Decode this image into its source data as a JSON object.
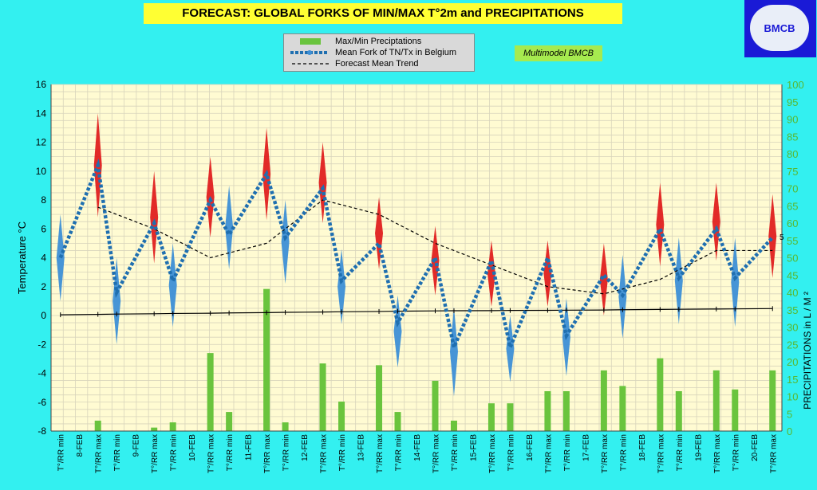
{
  "header": {
    "title": "FORECAST: GLOBAL FORKS OF  MIN/MAX T°2m and PRECIPITATIONS",
    "logo_text": "BMCB",
    "model_label": "Multimodel BMCB"
  },
  "legend": {
    "items": [
      {
        "label": "Max/Min Preciptations",
        "icon": "green-bar-swatch"
      },
      {
        "label": "Mean Fork of TN/Tx in Belgium",
        "icon": "blue-dotted-line-swatch"
      },
      {
        "label": "Forecast Mean Trend",
        "icon": "black-dashed-line-swatch"
      }
    ]
  },
  "chart_data": {
    "type": "line",
    "xlabel": "",
    "ylabel": "Temperature °C",
    "y2label": "PRECIPITATIONS in L / M ²",
    "ylim": [
      -8,
      16
    ],
    "y_ticks": [
      "-8",
      "-6",
      "-4",
      "-2",
      "0",
      "2",
      "4",
      "6",
      "8",
      "10",
      "12",
      "14",
      "16"
    ],
    "y2lim": [
      0,
      100
    ],
    "y2_ticks": [
      "0",
      "5",
      "10",
      "15",
      "20",
      "25",
      "30",
      "35",
      "40",
      "45",
      "50",
      "55",
      "60",
      "65",
      "70",
      "75",
      "80",
      "85",
      "90",
      "95",
      "100"
    ],
    "grid": true,
    "legend_position": "top-center",
    "colors": {
      "plot_bg": "#fffbd2",
      "grid": "#d8d4bb",
      "mean_fork": "#1f6fb0",
      "min_spike": "#3d8fd6",
      "max_spike": "#e0201f",
      "precip_bar": "#6ac43d",
      "trend": "#000000",
      "right_axis_text": "#59b830",
      "frame_bg": "#33f0f0",
      "title_bg": "#ffff33"
    },
    "categories": [
      "T°/RR min",
      "8-FEB",
      "T°/RR max",
      "T°/RR min",
      "9-FEB",
      "T°/RR max",
      "T°/RR min",
      "10-FEB",
      "T°/RR max",
      "T°/RR min",
      "11-FEB",
      "T°/RR max",
      "T°/RR min",
      "12-FEB",
      "T°/RR max",
      "T°/RR min",
      "13-FEB",
      "T°/RR max",
      "T°/RR min",
      "14-FEB",
      "T°/RR max",
      "T°/RR min",
      "15-FEB",
      "T°/RR max",
      "T°/RR min",
      "16-FEB",
      "T°/RR max",
      "T°/RR min",
      "17-FEB",
      "T°/RR max",
      "T°/RR min",
      "18-FEB",
      "T°/RR max",
      "T°/RR min",
      "19-FEB",
      "T°/RR max",
      "T°/RR min",
      "20-FEB",
      "T°/RR max"
    ],
    "series": [
      {
        "name": "Mean Fork of TN/Tx in Belgium",
        "values": [
          4.0,
          null,
          10.4,
          1.6,
          null,
          6.4,
          2.4,
          null,
          8.0,
          5.6,
          null,
          9.8,
          5.4,
          null,
          8.8,
          2.4,
          null,
          5.0,
          -0.5,
          null,
          4.0,
          -2.2,
          null,
          3.8,
          -2.2,
          null,
          4.0,
          -1.4,
          null,
          2.8,
          1.4,
          null,
          6.0,
          2.6,
          null,
          6.0,
          2.6,
          null,
          5.4
        ]
      },
      {
        "name": "Forecast Mean Trend",
        "values": [
          null,
          null,
          7.5,
          null,
          null,
          6.0,
          null,
          null,
          4.0,
          null,
          null,
          5.0,
          null,
          null,
          8.0,
          null,
          null,
          7.0,
          null,
          null,
          5.0,
          null,
          null,
          3.5,
          null,
          null,
          2.0,
          null,
          null,
          1.5,
          null,
          null,
          2.5,
          null,
          null,
          4.5,
          null,
          null,
          4.5
        ]
      },
      {
        "name": "Min spike",
        "values": [
          7.0,
          null,
          null,
          4.0,
          null,
          null,
          5.0,
          null,
          null,
          9.0,
          null,
          null,
          8.0,
          null,
          null,
          4.6,
          null,
          null,
          1.4,
          null,
          null,
          0.6,
          null,
          null,
          0.0,
          null,
          null,
          1.2,
          null,
          null,
          4.2,
          null,
          null,
          5.4,
          null,
          null,
          5.4,
          null,
          null
        ],
        "lows": [
          1.0,
          null,
          null,
          -2.0,
          null,
          null,
          -0.8,
          null,
          null,
          3.2,
          null,
          null,
          2.2,
          null,
          null,
          -0.6,
          null,
          null,
          -3.6,
          null,
          null,
          -5.6,
          null,
          null,
          -4.6,
          null,
          null,
          -4.2,
          null,
          null,
          -1.6,
          null,
          null,
          -0.6,
          null,
          null,
          -0.8,
          null,
          null
        ]
      },
      {
        "name": "Max spike",
        "values": [
          null,
          null,
          14.0,
          null,
          null,
          10.0,
          null,
          null,
          11.0,
          null,
          null,
          13.0,
          null,
          null,
          12.0,
          null,
          null,
          8.2,
          null,
          null,
          6.2,
          null,
          null,
          5.2,
          null,
          null,
          5.2,
          null,
          null,
          5.0,
          null,
          null,
          9.2,
          null,
          null,
          9.2,
          null,
          null,
          8.4
        ],
        "lows": [
          null,
          null,
          6.8,
          null,
          null,
          3.6,
          null,
          null,
          5.4,
          null,
          null,
          6.6,
          null,
          null,
          6.4,
          null,
          null,
          3.2,
          null,
          null,
          1.4,
          null,
          null,
          0.6,
          null,
          null,
          0.6,
          null,
          null,
          0.0,
          null,
          null,
          3.4,
          null,
          null,
          3.8,
          null,
          null,
          2.6
        ]
      },
      {
        "name": "Max/Min Preciptations",
        "axis": "right",
        "values": [
          0,
          null,
          3,
          0,
          null,
          1,
          2.5,
          null,
          22.5,
          5.5,
          null,
          41,
          2.5,
          null,
          19.5,
          8.5,
          null,
          19,
          5.5,
          null,
          14.5,
          3,
          null,
          8,
          8,
          null,
          11.5,
          11.5,
          null,
          17.5,
          13,
          null,
          21,
          11.5,
          null,
          17.5,
          12,
          null,
          17.5
        ]
      },
      {
        "name": "Zero line",
        "values": [
          0.05,
          null,
          0.08,
          0.1,
          null,
          0.12,
          0.14,
          null,
          0.16,
          0.18,
          null,
          0.2,
          0.22,
          null,
          0.24,
          0.26,
          null,
          0.28,
          0.3,
          null,
          0.32,
          0.33,
          null,
          0.34,
          0.35,
          null,
          0.36,
          0.37,
          null,
          0.38,
          0.4,
          null,
          0.42,
          0.43,
          null,
          0.45,
          0.46,
          null,
          0.48
        ]
      }
    ],
    "annotations": [
      "5"
    ]
  }
}
